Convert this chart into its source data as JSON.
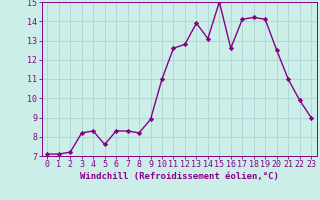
{
  "x": [
    0,
    1,
    2,
    3,
    4,
    5,
    6,
    7,
    8,
    9,
    10,
    11,
    12,
    13,
    14,
    15,
    16,
    17,
    18,
    19,
    20,
    21,
    22,
    23
  ],
  "y": [
    7.1,
    7.1,
    7.2,
    8.2,
    8.3,
    7.6,
    8.3,
    8.3,
    8.2,
    8.9,
    11.0,
    12.6,
    12.8,
    13.9,
    13.1,
    15.0,
    12.6,
    14.1,
    14.2,
    14.1,
    12.5,
    11.0,
    9.9,
    9.0
  ],
  "line_color": "#880088",
  "marker": "D",
  "marker_size": 2.2,
  "bg_color": "#cceee8",
  "grid_color": "#aacccc",
  "xlabel": "Windchill (Refroidissement éolien,°C)",
  "xlabel_color": "#880088",
  "tick_color": "#880088",
  "ylim": [
    7,
    15
  ],
  "xlim": [
    -0.5,
    23.5
  ],
  "yticks": [
    7,
    8,
    9,
    10,
    11,
    12,
    13,
    14,
    15
  ],
  "xticks": [
    0,
    1,
    2,
    3,
    4,
    5,
    6,
    7,
    8,
    9,
    10,
    11,
    12,
    13,
    14,
    15,
    16,
    17,
    18,
    19,
    20,
    21,
    22,
    23
  ],
  "xtick_labels": [
    "0",
    "1",
    "2",
    "3",
    "4",
    "5",
    "6",
    "7",
    "8",
    "9",
    "10",
    "11",
    "12",
    "13",
    "14",
    "15",
    "16",
    "17",
    "18",
    "19",
    "20",
    "21",
    "22",
    "23"
  ],
  "axis_spine_color": "#880088",
  "xlabel_fontsize": 6.5,
  "tick_fontsize": 6.0,
  "linewidth": 1.0
}
